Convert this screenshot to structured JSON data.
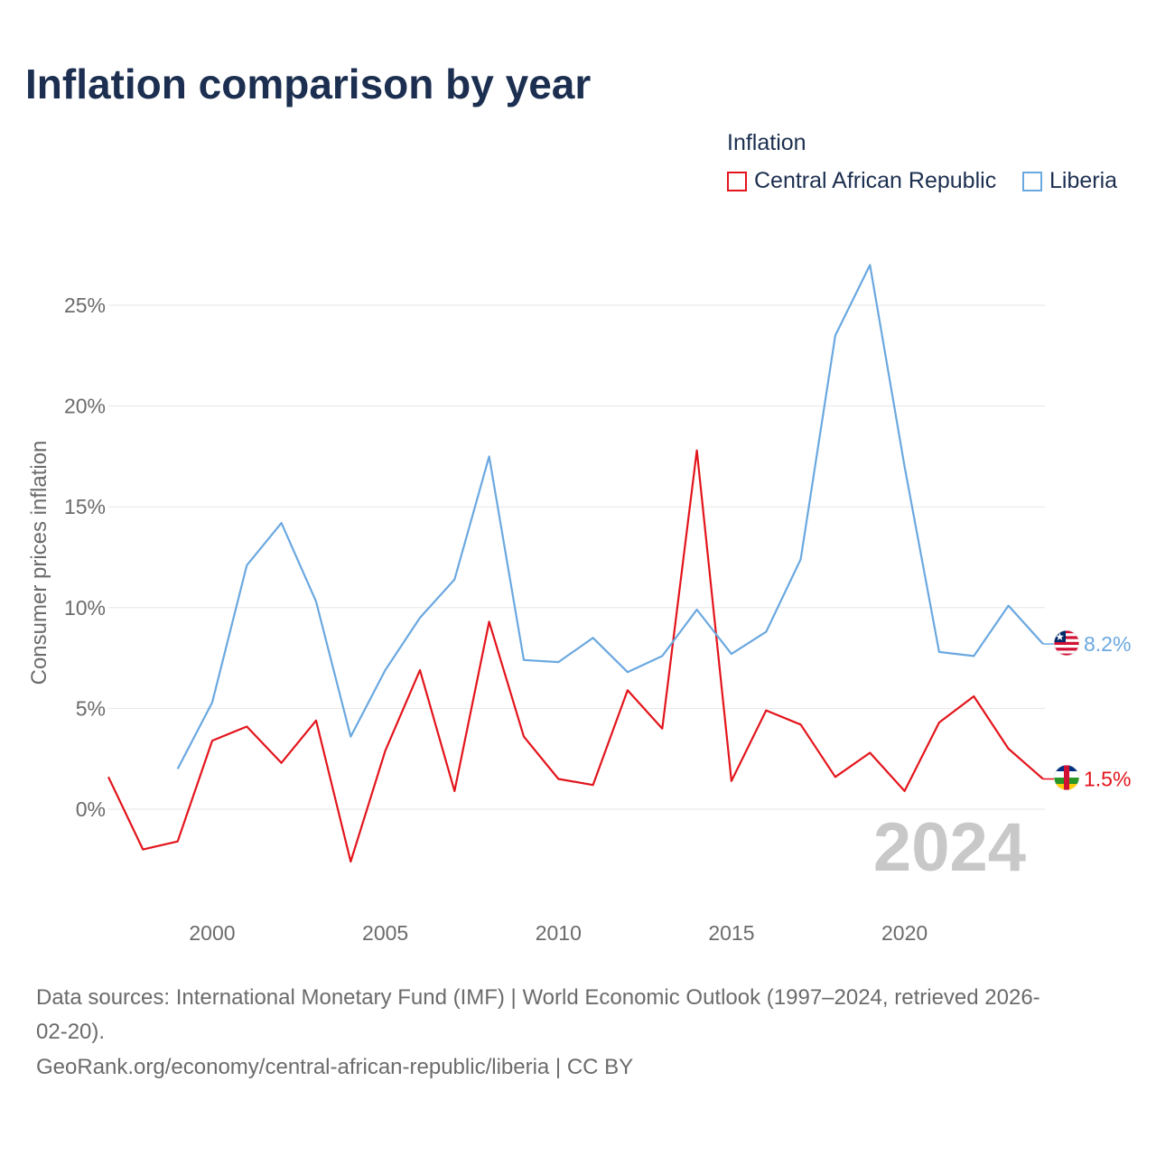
{
  "page": {
    "title": "Inflation comparison by year",
    "legend_title": "Inflation",
    "footer_line1": "Data sources: International Monetary Fund (IMF) | World Economic Outlook (1997–2024, retrieved 2026-",
    "footer_line2": "02-20).",
    "footer_line3": "GeoRank.org/economy/central-african-republic/liberia | CC BY"
  },
  "chart_data": {
    "type": "line",
    "title": "Inflation comparison by year",
    "ylabel": "Consumer prices inflation",
    "xlabel": "",
    "ylim": [
      -5,
      30
    ],
    "xlim": [
      1997,
      2024
    ],
    "y_ticks": [
      0,
      5,
      10,
      15,
      20,
      25
    ],
    "y_tick_labels": [
      "0%",
      "5%",
      "10%",
      "15%",
      "20%",
      "25%"
    ],
    "x_ticks": [
      2000,
      2005,
      2010,
      2015,
      2020
    ],
    "x_tick_labels": [
      "2000",
      "2005",
      "2010",
      "2015",
      "2020"
    ],
    "year_watermark": "2024",
    "grid": true,
    "legend_position": "top-right",
    "series": [
      {
        "name": "Central African Republic",
        "color": "#e3141b",
        "end_label": "1.5%",
        "flag": "central-african-republic-flag-icon",
        "x": [
          1997,
          1998,
          1999,
          2000,
          2001,
          2002,
          2003,
          2004,
          2005,
          2006,
          2007,
          2008,
          2009,
          2010,
          2011,
          2012,
          2013,
          2014,
          2015,
          2016,
          2017,
          2018,
          2019,
          2020,
          2021,
          2022,
          2023,
          2024
        ],
        "values": [
          1.6,
          -2.0,
          -1.6,
          3.4,
          4.1,
          2.3,
          4.4,
          -2.6,
          2.9,
          6.9,
          0.9,
          9.3,
          3.6,
          1.5,
          1.2,
          5.9,
          4.0,
          17.8,
          1.4,
          4.9,
          4.2,
          1.6,
          2.8,
          0.9,
          4.3,
          5.6,
          3.0,
          1.5
        ]
      },
      {
        "name": "Liberia",
        "color": "#6aa8e0",
        "end_label": "8.2%",
        "flag": "liberia-flag-icon",
        "x": [
          1999,
          2000,
          2001,
          2002,
          2003,
          2004,
          2005,
          2006,
          2007,
          2008,
          2009,
          2010,
          2011,
          2012,
          2013,
          2014,
          2015,
          2016,
          2017,
          2018,
          2019,
          2020,
          2021,
          2022,
          2023,
          2024
        ],
        "values": [
          2.0,
          5.3,
          12.1,
          14.2,
          10.3,
          3.6,
          6.9,
          9.5,
          11.4,
          17.5,
          7.4,
          7.3,
          8.5,
          6.8,
          7.6,
          9.9,
          7.7,
          8.8,
          12.4,
          23.5,
          27.0,
          17.0,
          7.8,
          7.6,
          10.1,
          8.2
        ]
      }
    ]
  }
}
